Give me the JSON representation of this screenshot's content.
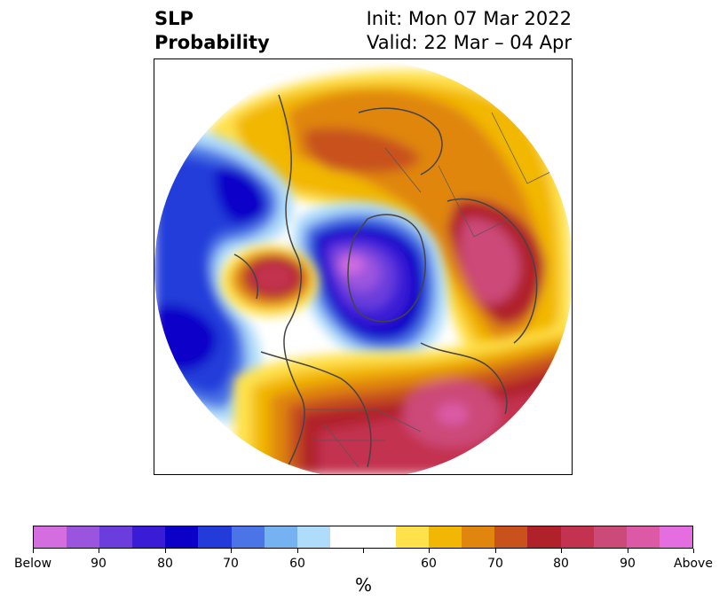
{
  "title": {
    "left_line1": "SLP",
    "left_line2": "Probability",
    "right_line1": "Init: Mon 07 Mar 2022",
    "right_line2": "Valid: 22 Mar – 04 Apr"
  },
  "map": {
    "projection": "north-polar-stereographic",
    "legend_colors": {
      "below_max": "#9d4ec9",
      "below_strong": "#0a00c8",
      "below_weak": "#afdcfa",
      "neutral": "#ffffff",
      "above_weak": "#ffe14b",
      "above_mid": "#e0860f",
      "above_strong": "#b0212a",
      "above_max": "#dc5aa5"
    }
  },
  "colorbar": {
    "colors": [
      "#d36de0",
      "#9b54de",
      "#6a3ddc",
      "#3a1bd6",
      "#0a00c8",
      "#233cd9",
      "#4b74e6",
      "#74b2f2",
      "#afdcfa",
      "#ffffff",
      "#ffffff",
      "#ffe14b",
      "#f2b705",
      "#e0860f",
      "#c8511c",
      "#b0212a",
      "#c33350",
      "#cc4a78",
      "#dc5aa5",
      "#e46ee0"
    ],
    "tick_labels": [
      "Below",
      "90",
      "80",
      "70",
      "60",
      "",
      "60",
      "70",
      "80",
      "90",
      "Above"
    ],
    "units": "%"
  }
}
